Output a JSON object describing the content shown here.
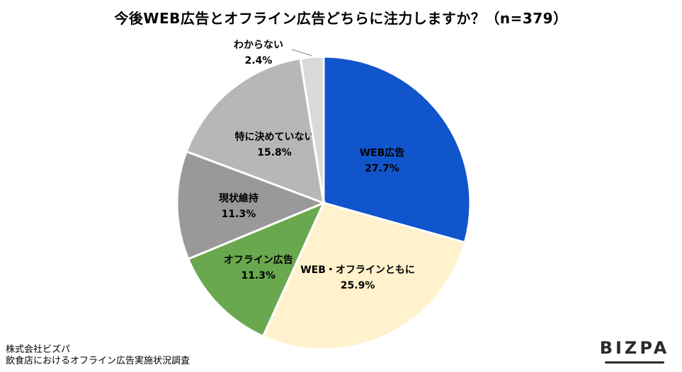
{
  "title": "今後WEB広告とオフライン広告どちらに注力しますか？（n=379）",
  "chart_data": {
    "type": "pie",
    "slices": [
      {
        "label": "WEB広告",
        "value": 27.7,
        "display": "27.7%",
        "color": "#1155cc",
        "label_color": "#000000"
      },
      {
        "label": "WEB・オフラインともに",
        "value": 25.9,
        "display": "25.9%",
        "color": "#fff2cc",
        "label_color": "#000000"
      },
      {
        "label": "オフライン広告",
        "value": 11.3,
        "display": "11.3%",
        "color": "#6aa84f",
        "label_color": "#000000"
      },
      {
        "label": "現状維持",
        "value": 11.3,
        "display": "11.3%",
        "color": "#999999",
        "label_color": "#000000"
      },
      {
        "label": "特に決めていない",
        "value": 15.8,
        "display": "15.8%",
        "color": "#b7b7b7",
        "label_color": "#000000"
      },
      {
        "label": "わからない",
        "value": 2.4,
        "display": "2.4%",
        "color": "#d9d9d9",
        "label_color": "#000000"
      }
    ],
    "start_angle": "12 o'clock",
    "direction": "clockwise"
  },
  "source": {
    "line1": "株式会社ビズパ",
    "line2": "飲食店におけるオフライン広告実施状況調査"
  },
  "logo": "BIZPA"
}
